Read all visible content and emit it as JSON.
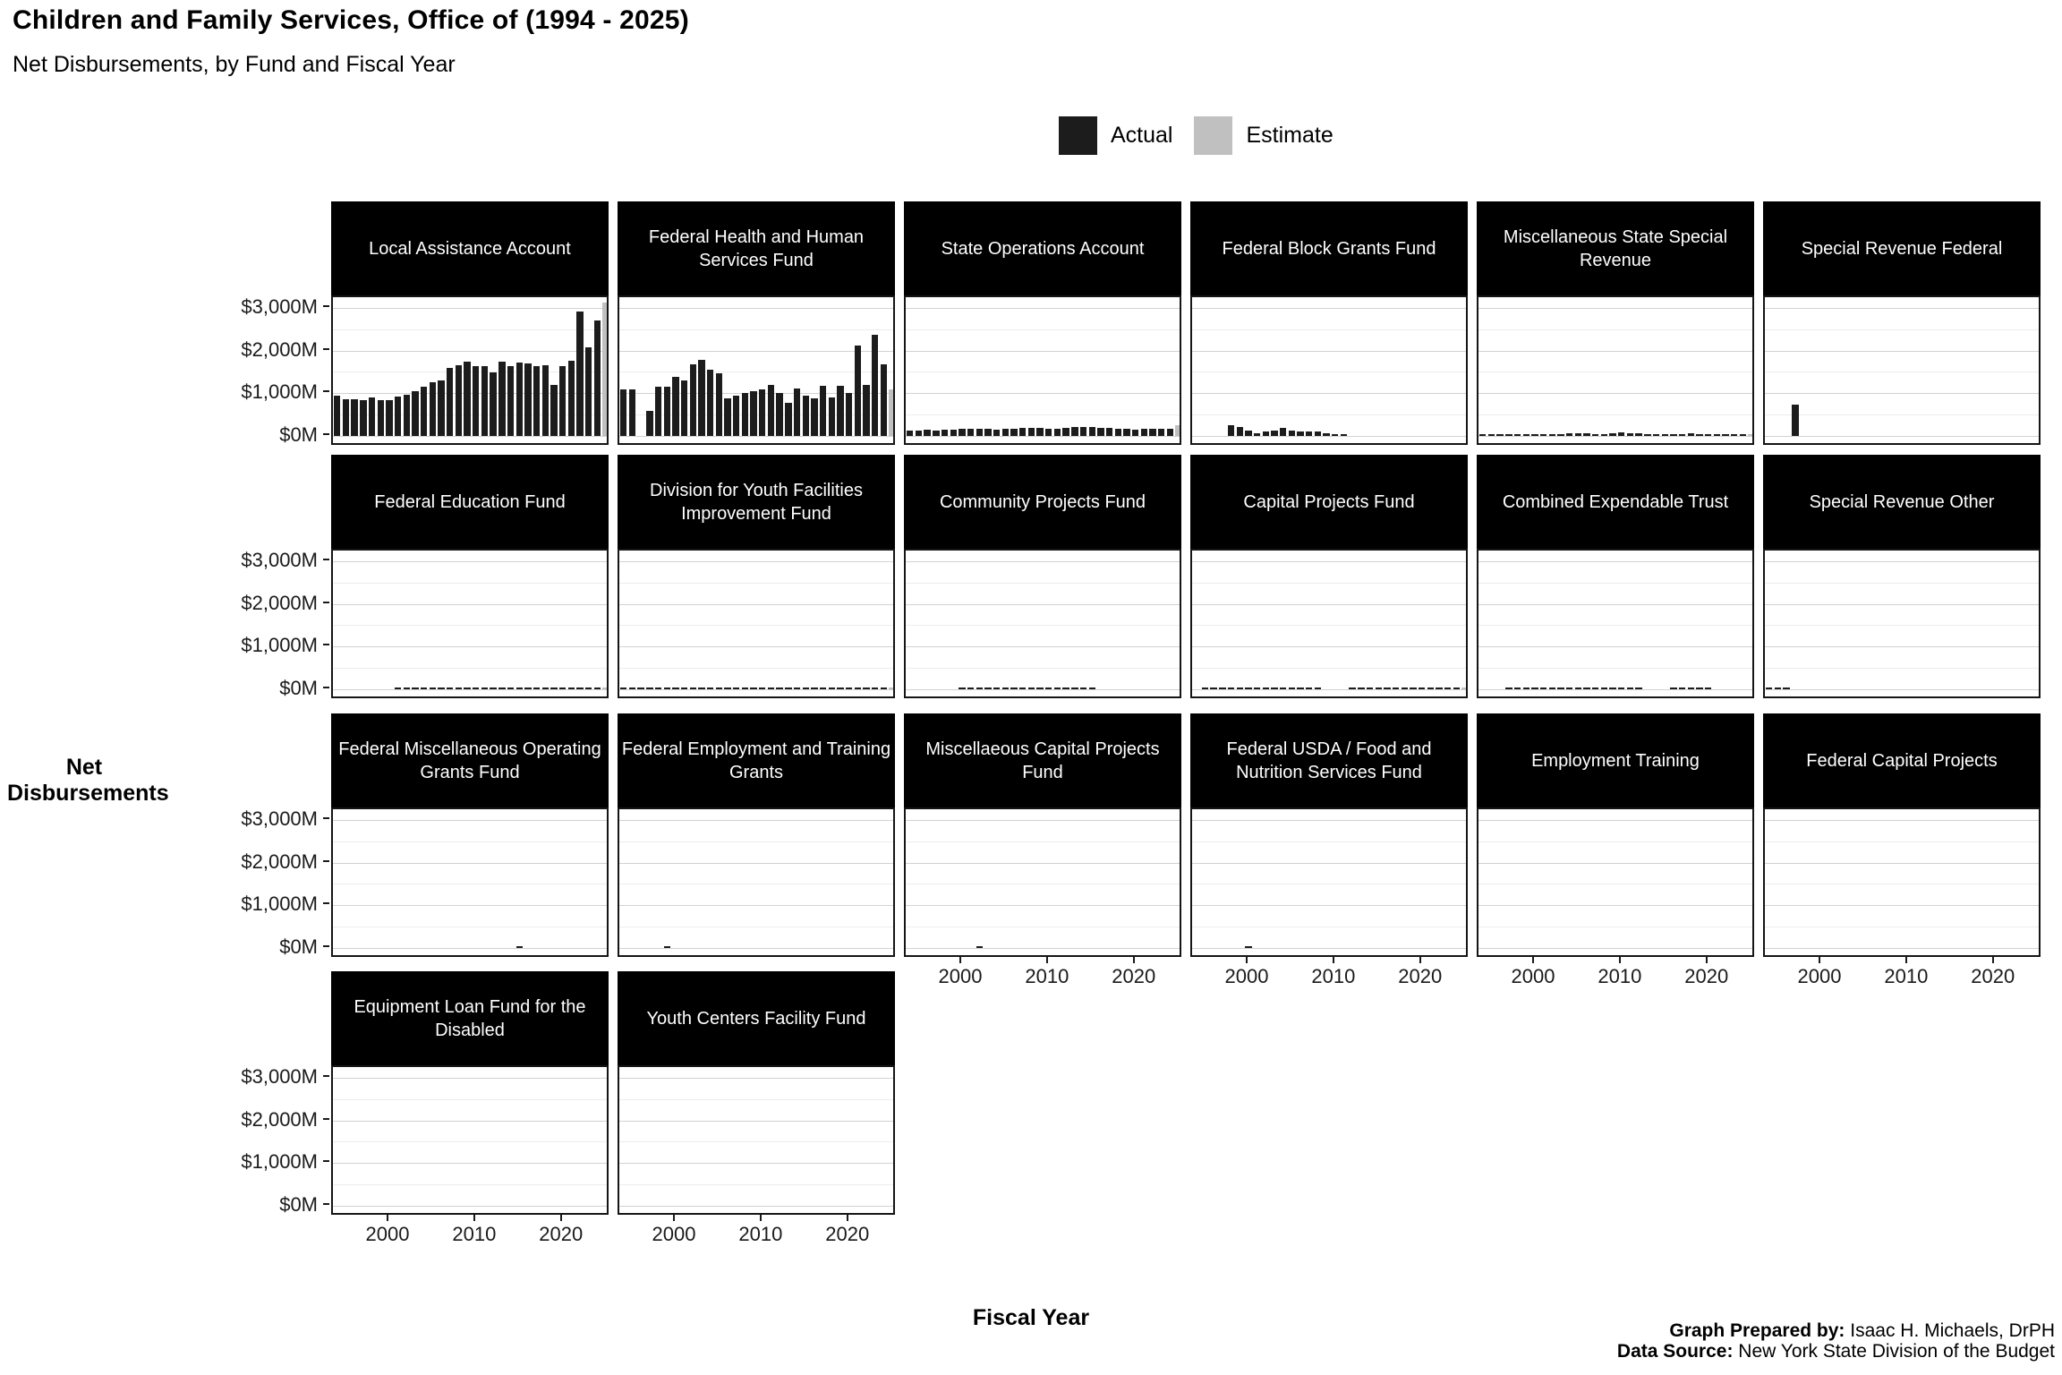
{
  "title": "Children and Family Services, Office of (1994 - 2025)",
  "subtitle": "Net Disbursements, by Fund and Fiscal Year",
  "legend": {
    "actual_label": "Actual",
    "estimate_label": "Estimate"
  },
  "colors": {
    "actual": "#1c1c1c",
    "estimate": "#c0c0c0",
    "strip_bg": "#000000",
    "strip_text": "#ffffff",
    "grid_major": "#d2d2d2",
    "grid_minor": "#ececec"
  },
  "axes": {
    "y_title": "Net Disbursements",
    "x_title": "Fiscal Year",
    "y_tick_labels": [
      "$3,000M",
      "$2,000M",
      "$1,000M",
      "$0M"
    ],
    "y_tick_values": [
      3000,
      2000,
      1000,
      0
    ],
    "x_tick_labels": [
      "2000",
      "2010",
      "2020"
    ],
    "x_tick_values": [
      2000,
      2010,
      2020
    ]
  },
  "footer": {
    "prepared_by_label": "Graph Prepared by:",
    "prepared_by": " Isaac H. Michaels, DrPH",
    "source_label": "Data Source:",
    "source": " New York State Division of the Budget"
  },
  "chart_data": {
    "type": "bar",
    "unit": "millions USD",
    "x": [
      1994,
      1995,
      1996,
      1997,
      1998,
      1999,
      2000,
      2001,
      2002,
      2003,
      2004,
      2005,
      2006,
      2007,
      2008,
      2009,
      2010,
      2011,
      2012,
      2013,
      2014,
      2015,
      2016,
      2017,
      2018,
      2019,
      2020,
      2021,
      2022,
      2023,
      2024,
      2025
    ],
    "estimate_years": [
      2025
    ],
    "ylim": [
      0,
      3450
    ],
    "series_legend": [
      "Actual",
      "Estimate"
    ],
    "facets": [
      {
        "title": "Local Assistance Account",
        "values": [
          950,
          870,
          870,
          840,
          910,
          840,
          840,
          930,
          960,
          1050,
          1150,
          1260,
          1310,
          1590,
          1660,
          1730,
          1640,
          1630,
          1490,
          1730,
          1640,
          1720,
          1700,
          1630,
          1660,
          1190,
          1640,
          1770,
          2920,
          2080,
          2710,
          3130
        ]
      },
      {
        "title": "Federal Health and Human Services Fund",
        "values": [
          1080,
          1080,
          0,
          590,
          1150,
          1150,
          1390,
          1290,
          1680,
          1790,
          1560,
          1470,
          880,
          940,
          1010,
          1040,
          1090,
          1200,
          1010,
          770,
          1110,
          940,
          880,
          1180,
          900,
          1180,
          1010,
          2120,
          1200,
          2360,
          1670,
          1090
        ]
      },
      {
        "title": "State Operations Account",
        "values": [
          120,
          130,
          140,
          120,
          140,
          150,
          160,
          175,
          170,
          160,
          155,
          165,
          175,
          185,
          195,
          185,
          175,
          165,
          195,
          205,
          215,
          200,
          190,
          180,
          170,
          160,
          150,
          160,
          170,
          175,
          165,
          245
        ]
      },
      {
        "title": "Federal Block Grants Fund",
        "values": [
          0,
          0,
          0,
          0,
          250,
          200,
          130,
          60,
          100,
          130,
          190,
          130,
          110,
          100,
          100,
          60,
          50,
          20,
          0,
          0,
          0,
          0,
          0,
          0,
          0,
          0,
          0,
          0,
          0,
          0,
          0,
          0
        ]
      },
      {
        "title": "Miscellaneous State Special Revenue",
        "values": [
          15,
          10,
          5,
          5,
          10,
          15,
          30,
          25,
          35,
          45,
          60,
          70,
          65,
          50,
          45,
          55,
          90,
          60,
          55,
          50,
          45,
          20,
          10,
          45,
          55,
          15,
          10,
          12,
          12,
          10,
          10,
          12
        ]
      },
      {
        "title": "Special Revenue Federal",
        "values": [
          0,
          0,
          0,
          730,
          0,
          0,
          0,
          0,
          0,
          0,
          0,
          0,
          0,
          0,
          0,
          0,
          0,
          0,
          0,
          0,
          0,
          0,
          0,
          0,
          0,
          0,
          0,
          0,
          0,
          0,
          0,
          0
        ]
      },
      {
        "title": "Federal Education Fund",
        "values": [
          0,
          0,
          0,
          0,
          0,
          0,
          0,
          10,
          10,
          10,
          12,
          15,
          15,
          12,
          10,
          15,
          20,
          20,
          40,
          20,
          20,
          25,
          20,
          20,
          20,
          25,
          25,
          20,
          22,
          22,
          25,
          30
        ]
      },
      {
        "title": "Division for Youth Facilities Improvement Fund",
        "values": [
          12,
          10,
          12,
          12,
          14,
          12,
          15,
          12,
          10,
          12,
          12,
          14,
          12,
          12,
          14,
          12,
          12,
          14,
          12,
          14,
          14,
          12,
          14,
          35,
          14,
          12,
          12,
          14,
          12,
          14,
          14,
          35
        ]
      },
      {
        "title": "Community Projects Fund",
        "values": [
          0,
          0,
          0,
          0,
          0,
          0,
          14,
          12,
          15,
          15,
          12,
          14,
          15,
          16,
          14,
          12,
          10,
          8,
          8,
          8,
          8,
          6,
          0,
          0,
          0,
          0,
          0,
          0,
          0,
          0,
          0,
          0
        ]
      },
      {
        "title": "Capital Projects Fund",
        "values": [
          0,
          5,
          8,
          5,
          25,
          5,
          20,
          8,
          8,
          6,
          6,
          8,
          5,
          5,
          5,
          0,
          0,
          0,
          5,
          5,
          5,
          5,
          5,
          6,
          6,
          8,
          10,
          10,
          12,
          12,
          12,
          40
        ]
      },
      {
        "title": "Combined Expendable Trust",
        "values": [
          0,
          0,
          0,
          4,
          4,
          5,
          4,
          4,
          4,
          5,
          4,
          4,
          5,
          4,
          4,
          4,
          5,
          4,
          4,
          0,
          0,
          0,
          4,
          4,
          5,
          4,
          4,
          0,
          0,
          0,
          0,
          0
        ]
      },
      {
        "title": "Special Revenue Other",
        "values": [
          12,
          10,
          8,
          0,
          0,
          0,
          0,
          0,
          0,
          0,
          0,
          0,
          0,
          0,
          0,
          0,
          0,
          0,
          0,
          0,
          0,
          0,
          0,
          0,
          0,
          0,
          0,
          0,
          0,
          0,
          0,
          0
        ]
      },
      {
        "title": "Federal Miscellaneous Operating Grants Fund",
        "values": [
          0,
          0,
          0,
          0,
          0,
          0,
          0,
          0,
          0,
          0,
          0,
          0,
          0,
          0,
          0,
          0,
          0,
          0,
          0,
          0,
          0,
          40,
          0,
          0,
          0,
          0,
          0,
          0,
          0,
          0,
          0,
          0
        ]
      },
      {
        "title": "Federal Employment and Training Grants",
        "values": [
          0,
          0,
          0,
          0,
          0,
          40,
          0,
          0,
          0,
          0,
          0,
          0,
          0,
          0,
          0,
          0,
          0,
          0,
          0,
          0,
          0,
          0,
          0,
          0,
          0,
          0,
          0,
          0,
          0,
          0,
          0,
          0
        ]
      },
      {
        "title": "Miscellaeous Capital Projects Fund",
        "values": [
          0,
          0,
          0,
          0,
          0,
          0,
          0,
          0,
          40,
          0,
          0,
          0,
          0,
          0,
          0,
          0,
          0,
          0,
          0,
          0,
          0,
          0,
          0,
          0,
          0,
          0,
          0,
          0,
          0,
          0,
          0,
          0
        ]
      },
      {
        "title": "Federal USDA / Food and Nutrition Services Fund",
        "values": [
          0,
          0,
          0,
          0,
          0,
          0,
          40,
          0,
          0,
          0,
          0,
          0,
          0,
          0,
          0,
          0,
          0,
          0,
          0,
          0,
          0,
          0,
          0,
          0,
          0,
          0,
          0,
          0,
          0,
          0,
          0,
          0
        ]
      },
      {
        "title": "Employment Training",
        "values": [
          0,
          0,
          0,
          0,
          0,
          0,
          0,
          0,
          0,
          0,
          0,
          0,
          0,
          0,
          0,
          0,
          0,
          0,
          0,
          0,
          0,
          0,
          0,
          0,
          0,
          0,
          0,
          0,
          0,
          0,
          0,
          0
        ]
      },
      {
        "title": "Federal Capital Projects",
        "values": [
          0,
          0,
          0,
          0,
          0,
          0,
          0,
          0,
          0,
          0,
          0,
          0,
          0,
          0,
          0,
          0,
          0,
          0,
          0,
          0,
          0,
          0,
          0,
          0,
          0,
          0,
          0,
          0,
          0,
          0,
          0,
          0
        ]
      },
      {
        "title": "Equipment Loan Fund for the Disabled",
        "values": [
          0,
          0,
          0,
          0,
          0,
          0,
          0,
          0,
          0,
          0,
          0,
          0,
          0,
          0,
          0,
          0,
          0,
          0,
          0,
          0,
          0,
          0,
          0,
          0,
          0,
          0,
          0,
          0,
          0,
          0,
          0,
          0
        ]
      },
      {
        "title": "Youth Centers Facility Fund",
        "values": [
          0,
          0,
          0,
          0,
          0,
          0,
          0,
          0,
          0,
          0,
          0,
          0,
          0,
          0,
          0,
          0,
          0,
          0,
          0,
          0,
          0,
          0,
          0,
          0,
          0,
          0,
          0,
          0,
          0,
          0,
          0,
          0
        ]
      }
    ]
  }
}
